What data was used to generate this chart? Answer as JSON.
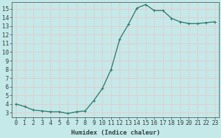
{
  "xlabel": "Humidex (Indice chaleur)",
  "x": [
    0,
    1,
    2,
    3,
    4,
    5,
    6,
    7,
    8,
    9,
    10,
    11,
    12,
    13,
    14,
    15,
    16,
    17,
    18,
    19,
    20,
    21,
    22,
    23
  ],
  "y": [
    4.0,
    3.7,
    3.3,
    3.2,
    3.1,
    3.1,
    2.9,
    3.1,
    3.2,
    4.4,
    5.8,
    8.0,
    11.5,
    13.2,
    15.1,
    15.5,
    14.8,
    14.8,
    13.9,
    13.5,
    13.3,
    13.3,
    13.4,
    13.5
  ],
  "line_color": "#2e7d6e",
  "marker": "+",
  "marker_size": 3.5,
  "line_width": 1.0,
  "bg_color": "#c5e8e8",
  "grid_color": "#e8c8c8",
  "tick_color": "#2e4040",
  "xlim": [
    -0.5,
    23.5
  ],
  "ylim": [
    2.5,
    15.8
  ],
  "yticks": [
    3,
    4,
    5,
    6,
    7,
    8,
    9,
    10,
    11,
    12,
    13,
    14,
    15
  ],
  "xtick_labels": [
    "0",
    "1",
    "2",
    "3",
    "4",
    "5",
    "6",
    "7",
    "8",
    "9",
    "10",
    "11",
    "12",
    "13",
    "14",
    "15",
    "16",
    "17",
    "18",
    "19",
    "20",
    "21",
    "22",
    "23"
  ],
  "label_fontsize": 6.5,
  "tick_fontsize": 6.0
}
